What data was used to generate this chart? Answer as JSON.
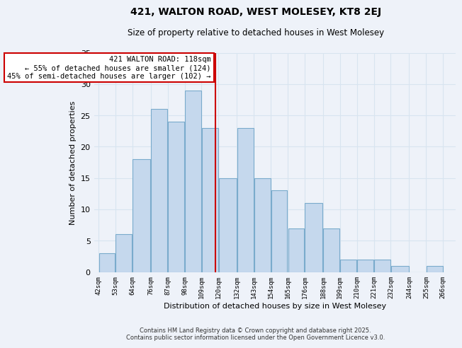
{
  "title": "421, WALTON ROAD, WEST MOLESEY, KT8 2EJ",
  "subtitle": "Size of property relative to detached houses in West Molesey",
  "xlabel": "Distribution of detached houses by size in West Molesey",
  "ylabel": "Number of detached properties",
  "bar_color": "#c5d8ed",
  "bar_edge_color": "#7aabcc",
  "bins": [
    42,
    53,
    64,
    76,
    87,
    98,
    109,
    120,
    132,
    143,
    154,
    165,
    176,
    188,
    199,
    210,
    221,
    232,
    244,
    255,
    266
  ],
  "counts": [
    3,
    6,
    18,
    26,
    24,
    29,
    23,
    15,
    23,
    15,
    13,
    7,
    11,
    7,
    2,
    2,
    2,
    1,
    0,
    1
  ],
  "tick_labels": [
    "42sqm",
    "53sqm",
    "64sqm",
    "76sqm",
    "87sqm",
    "98sqm",
    "109sqm",
    "120sqm",
    "132sqm",
    "143sqm",
    "154sqm",
    "165sqm",
    "176sqm",
    "188sqm",
    "199sqm",
    "210sqm",
    "221sqm",
    "232sqm",
    "244sqm",
    "255sqm",
    "266sqm"
  ],
  "vline_x": 118,
  "vline_color": "#cc0000",
  "ylim": [
    0,
    35
  ],
  "yticks": [
    0,
    5,
    10,
    15,
    20,
    25,
    30,
    35
  ],
  "annotation_title": "421 WALTON ROAD: 118sqm",
  "annotation_line1": "← 55% of detached houses are smaller (124)",
  "annotation_line2": "45% of semi-detached houses are larger (102) →",
  "annotation_box_color": "#ffffff",
  "annotation_box_edge": "#cc0000",
  "footer1": "Contains HM Land Registry data © Crown copyright and database right 2025.",
  "footer2": "Contains public sector information licensed under the Open Government Licence v3.0.",
  "bg_color": "#eef2f9",
  "grid_color": "#d8e4f0"
}
